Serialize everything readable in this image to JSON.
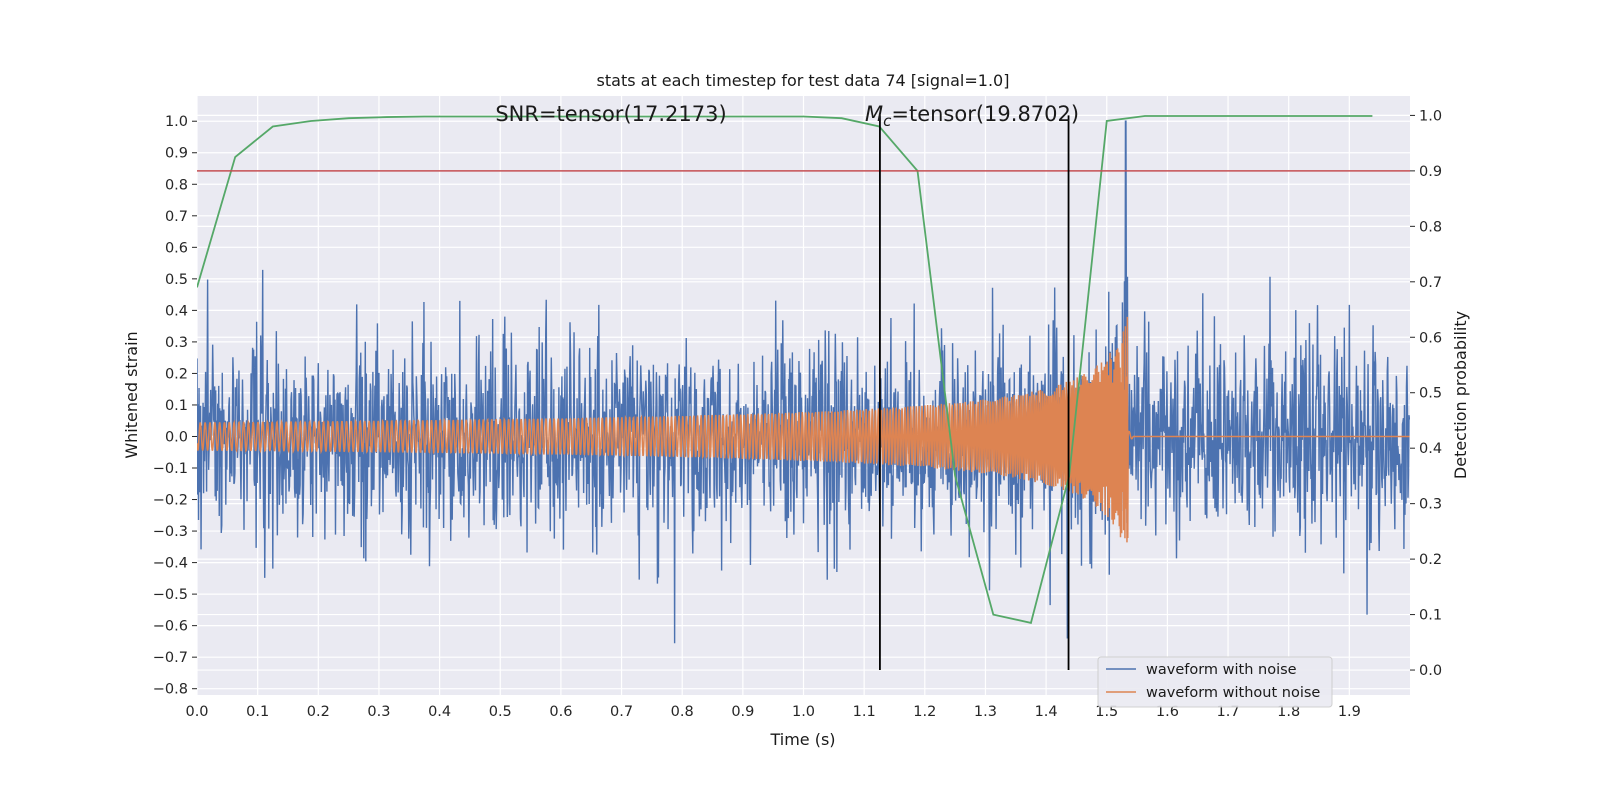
{
  "chart_data": {
    "type": "line",
    "title": "stats at each timestep for test data 74 [signal=1.0]",
    "xlabel": "Time (s)",
    "ylabel": "Whitened strain",
    "y2label": "Detection probability",
    "xlim": [
      0.0,
      2.0
    ],
    "ylim": [
      -0.82,
      1.08
    ],
    "y2lim": [
      -0.045,
      1.035
    ],
    "xticks": [
      "0.0",
      "0.1",
      "0.2",
      "0.3",
      "0.4",
      "0.5",
      "0.6",
      "0.7",
      "0.8",
      "0.9",
      "1.0",
      "1.1",
      "1.2",
      "1.3",
      "1.4",
      "1.5",
      "1.6",
      "1.7",
      "1.8",
      "1.9"
    ],
    "yticks": [
      "1.0",
      "0.9",
      "0.8",
      "0.7",
      "0.6",
      "0.5",
      "0.4",
      "0.3",
      "0.2",
      "0.1",
      "0.0",
      "−0.1",
      "−0.2",
      "−0.3",
      "−0.4",
      "−0.5",
      "−0.6",
      "−0.7",
      "−0.8"
    ],
    "y2ticks": [
      "1.0",
      "0.9",
      "0.8",
      "0.7",
      "0.6",
      "0.5",
      "0.4",
      "0.3",
      "0.2",
      "0.1",
      "0.0"
    ],
    "grid": true,
    "legend_position": "lower-right",
    "annotations": {
      "snr_text": "SNR=tensor(17.2173)",
      "mc_symbol": "M",
      "mc_subscript": "c",
      "mc_value": "=tensor(19.8702)"
    },
    "series": [
      {
        "name": "waveform with noise",
        "color": "#4c72b0",
        "description": "whitened noisy strain, roughly within −0.73 to 1.0 on the left axis"
      },
      {
        "name": "waveform without noise",
        "color": "#dd8452",
        "description": "chirp signal growing until merger near t=1.53 s, flat at 0 afterwards"
      }
    ],
    "detection_probability": {
      "color": "#55a868",
      "x": [
        0.0,
        0.063,
        0.125,
        0.188,
        0.25,
        0.313,
        0.375,
        0.438,
        0.5,
        0.563,
        0.625,
        0.688,
        0.75,
        0.813,
        0.875,
        0.938,
        1.0,
        1.063,
        1.125,
        1.188,
        1.25,
        1.313,
        1.375,
        1.438,
        1.5,
        1.563,
        1.625,
        1.688,
        1.75,
        1.813,
        1.875,
        1.938
      ],
      "y": [
        0.69,
        0.925,
        0.98,
        0.99,
        0.995,
        0.997,
        0.998,
        0.998,
        0.998,
        0.998,
        0.998,
        0.998,
        0.998,
        0.998,
        0.998,
        0.998,
        0.998,
        0.995,
        0.98,
        0.9,
        0.35,
        0.1,
        0.085,
        0.35,
        0.99,
        0.999,
        0.999,
        0.999,
        0.999,
        0.999,
        0.999,
        0.999
      ]
    },
    "threshold": {
      "value": 0.9,
      "axis": "right",
      "color": "#c44e52"
    },
    "vertical_lines": [
      {
        "x": 1.126,
        "color": "#000000"
      },
      {
        "x": 1.437,
        "color": "#000000"
      }
    ]
  }
}
